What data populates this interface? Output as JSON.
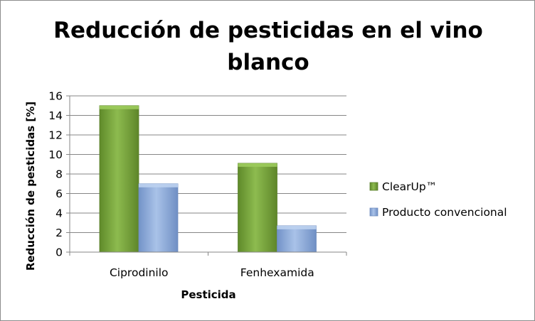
{
  "chart_data": {
    "type": "bar",
    "title_lines": [
      "Reducción de pesticidas en el vino",
      "blanco"
    ],
    "xlabel": "Pesticida",
    "ylabel": "Reducción de pesticidas [%]",
    "categories": [
      "Ciprodinilo",
      "Fenhexamida"
    ],
    "series": [
      {
        "name": "ClearUp™",
        "values": [
          15,
          9.1
        ],
        "color": "#77a03a"
      },
      {
        "name": "Producto convencional",
        "values": [
          7,
          2.7
        ],
        "color": "#8eacd9"
      }
    ],
    "ylim": [
      0,
      16
    ],
    "yticks": [
      0,
      2,
      4,
      6,
      8,
      10,
      12,
      14,
      16
    ],
    "grid": true,
    "legend_position": "right"
  }
}
